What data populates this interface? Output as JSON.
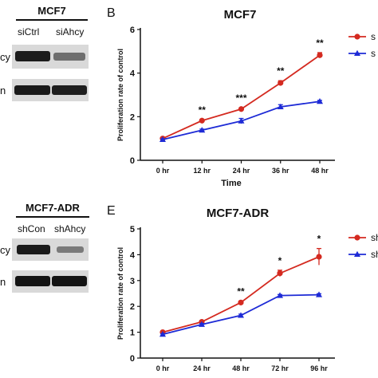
{
  "figure": {
    "top_blot": {
      "title": "MCF7",
      "lanes": [
        "siCtrl",
        "siAhcy"
      ],
      "row_labels": [
        "cy",
        "n"
      ]
    },
    "bottom_blot": {
      "title": "MCF7-ADR",
      "lanes": [
        "shCon",
        "shAhcy"
      ],
      "row_labels": [
        "cy",
        "n"
      ]
    }
  },
  "chart_data": [
    {
      "panel": "B",
      "type": "line",
      "title": "MCF7",
      "xlabel": "Time",
      "ylabel": "Proliferation rate of control",
      "categories": [
        "0 hr",
        "12 hr",
        "24 hr",
        "36 hr",
        "48 hr"
      ],
      "ylim": [
        0,
        6
      ],
      "yticks": [
        0,
        2,
        4,
        6
      ],
      "series": [
        {
          "name": "s",
          "color": "#d42a20",
          "marker": "circle",
          "values": [
            1.0,
            1.82,
            2.35,
            3.55,
            4.82
          ],
          "errors": [
            0.03,
            0.05,
            0.06,
            0.1,
            0.12
          ]
        },
        {
          "name": "s",
          "color": "#1e2bd6",
          "marker": "triangle",
          "values": [
            0.95,
            1.38,
            1.8,
            2.45,
            2.7
          ],
          "errors": [
            0.03,
            0.05,
            0.12,
            0.1,
            0.05
          ]
        }
      ],
      "annotations": [
        "",
        "**",
        "***",
        "**",
        "**"
      ],
      "legend_position": "top-right"
    },
    {
      "panel": "E",
      "type": "line",
      "title": "MCF7-ADR",
      "xlabel": "",
      "ylabel": "Proliferation rate of control",
      "categories": [
        "0 hr",
        "24 hr",
        "48 hr",
        "72 hr",
        "96 hr"
      ],
      "ylim": [
        0,
        5
      ],
      "yticks": [
        0,
        1,
        2,
        3,
        4,
        5
      ],
      "series": [
        {
          "name": "sh",
          "color": "#d42a20",
          "marker": "circle",
          "values": [
            1.0,
            1.4,
            2.15,
            3.28,
            3.92
          ],
          "errors": [
            0.03,
            0.04,
            0.05,
            0.12,
            0.32
          ]
        },
        {
          "name": "sh",
          "color": "#1e2bd6",
          "marker": "triangle",
          "values": [
            0.92,
            1.3,
            1.65,
            2.42,
            2.45
          ],
          "errors": [
            0.02,
            0.04,
            0.05,
            0.04,
            0.04
          ]
        }
      ],
      "annotations": [
        "",
        "",
        "**",
        "*",
        "*"
      ],
      "legend_position": "top-right"
    }
  ]
}
